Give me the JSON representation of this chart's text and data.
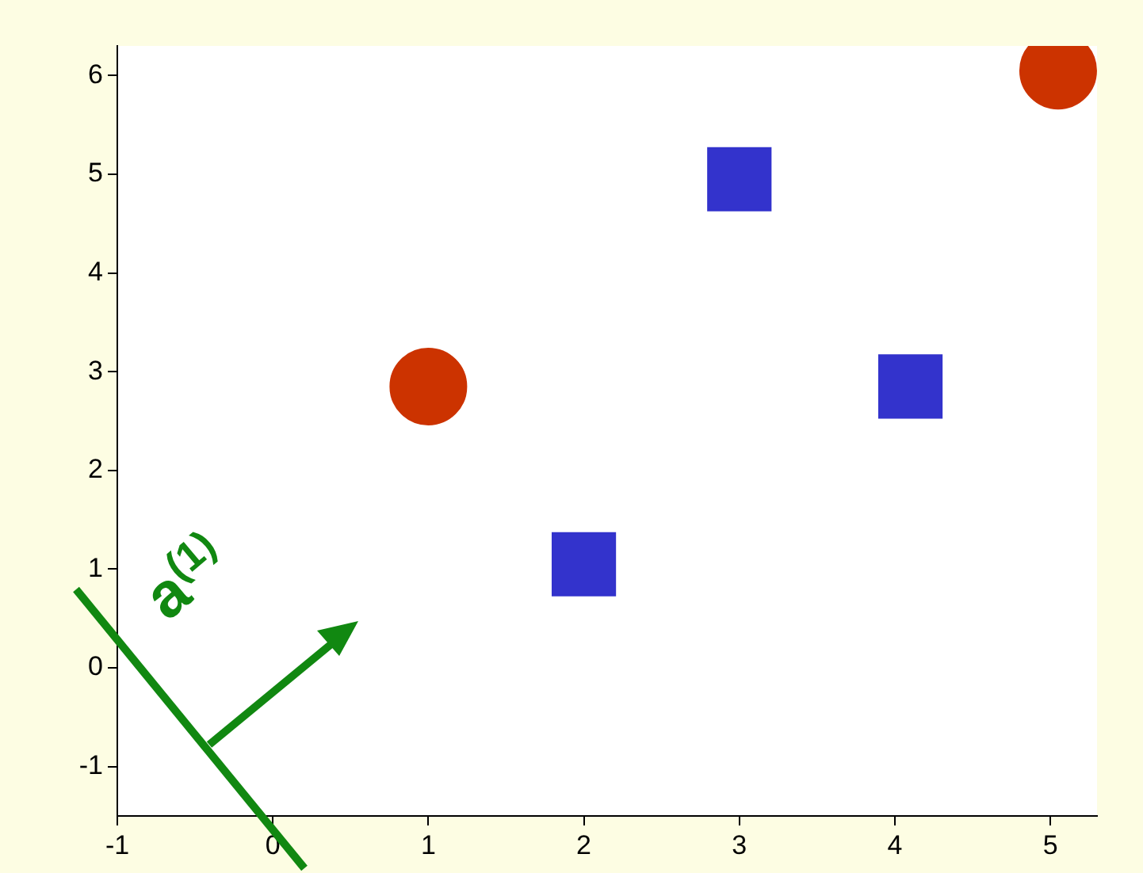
{
  "chart_data": {
    "type": "scatter",
    "series": [
      {
        "color": "#cc3300",
        "marker": "circle",
        "x": [
          1,
          5.05
        ],
        "values": [
          2.85,
          6.05
        ]
      },
      {
        "color": "#3333cc",
        "marker": "square",
        "x": [
          2,
          3,
          4.1
        ],
        "values": [
          1.05,
          4.95,
          2.85
        ]
      }
    ],
    "xlim": [
      -1,
      5.3
    ],
    "xticks": [
      -1,
      0,
      1,
      2,
      3,
      4,
      5
    ],
    "ylim": [
      -1.5,
      6.3
    ],
    "yticks": [
      -1,
      0,
      1,
      2,
      3,
      4,
      5,
      6
    ],
    "grid": false,
    "legend": false,
    "annotations": [
      "a$^{(1)}$"
    ]
  }
}
